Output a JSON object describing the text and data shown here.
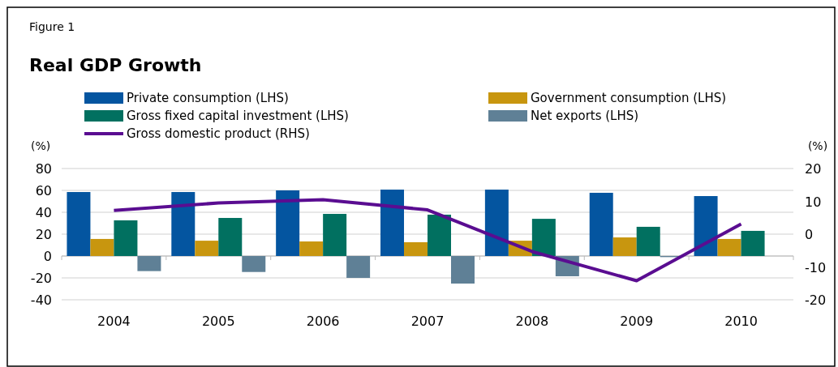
{
  "chart_data": {
    "type": "bar",
    "title": "Real GDP Growth",
    "annotations": [
      "Figure 1"
    ],
    "ylabel": "(%)",
    "y2label": "(%)",
    "categories": [
      "2004",
      "2005",
      "2006",
      "2007",
      "2008",
      "2009",
      "2010"
    ],
    "series": [
      {
        "name": "Private consumption (LHS)",
        "color": "#0455a0",
        "values": [
          58.5,
          58.5,
          60,
          60.7,
          60.7,
          57.8,
          54.8
        ]
      },
      {
        "name": "Government consumption (LHS)",
        "color": "#c8960f",
        "values": [
          15.6,
          14,
          13.3,
          12.6,
          14,
          17,
          15.6
        ]
      },
      {
        "name": "Gross fixed capital investment (LHS)",
        "color": "#017060",
        "values": [
          32.6,
          34.8,
          38.5,
          37.8,
          34,
          26.7,
          23
        ]
      },
      {
        "name": "Net exports (LHS)",
        "color": "#5f8096",
        "values": [
          -13.8,
          -14.6,
          -20,
          -25.2,
          -18.5,
          -1,
          null
        ]
      },
      {
        "name": "Gross domestic product (RHS)",
        "type": "line",
        "axis": "y2",
        "color": "#5a0d91",
        "values": [
          7.2,
          9.5,
          10.5,
          7.4,
          -5.3,
          -14.2,
          3.1
        ]
      }
    ],
    "ylim": [
      -40,
      80
    ],
    "yticks": [
      -40,
      -20,
      0,
      20,
      40,
      60,
      80
    ],
    "y2lim": [
      -20,
      20
    ],
    "y2ticks": [
      -20,
      -10,
      0,
      10,
      20
    ],
    "grid": "y",
    "legend": "top",
    "marker": "none",
    "line_style": "solid"
  }
}
